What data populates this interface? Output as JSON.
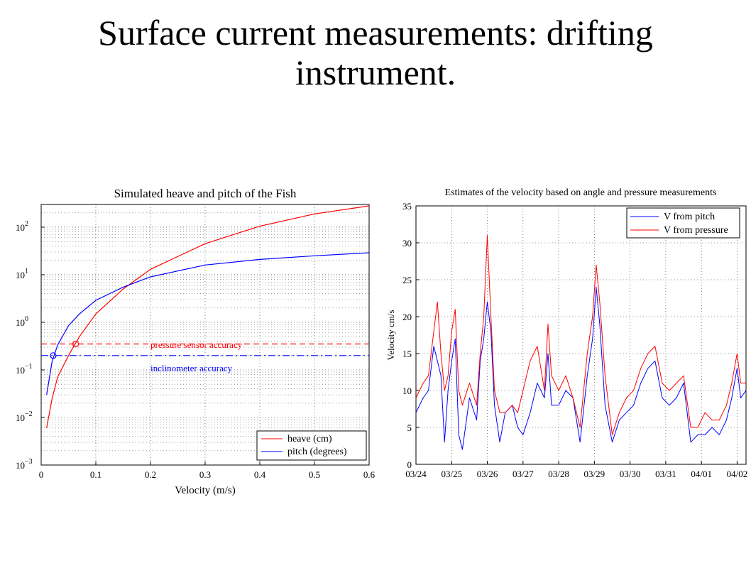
{
  "slide": {
    "title_line1": "Surface current measurements: drifting",
    "title_line2": "instrument."
  },
  "chart_data": [
    {
      "type": "line",
      "title": "Simulated heave and pitch of the Fish",
      "xlabel": "Velocity (m/s)",
      "ylabel": "",
      "y_scale": "log",
      "xlim": [
        0,
        0.6
      ],
      "ylim": [
        0.001,
        300
      ],
      "grid": true,
      "x_ticks": [
        "0",
        "0.1",
        "0.2",
        "0.3",
        "0.4",
        "0.5",
        "0.6"
      ],
      "x_tick_values": [
        0,
        0.1,
        0.2,
        0.3,
        0.4,
        0.5,
        0.6
      ],
      "y_ticks": [
        {
          "base": "10",
          "exp": "2",
          "value": 100
        },
        {
          "base": "10",
          "exp": "1",
          "value": 10
        },
        {
          "base": "10",
          "exp": "0",
          "value": 1
        },
        {
          "base": "10",
          "exp": "−1",
          "value": 0.1
        },
        {
          "base": "10",
          "exp": "−2",
          "value": 0.01
        },
        {
          "base": "10",
          "exp": "−3",
          "value": 0.001
        }
      ],
      "series": [
        {
          "name": "heave (cm)",
          "color": "#ff0000",
          "x": [
            0.01,
            0.02,
            0.03,
            0.05,
            0.07,
            0.1,
            0.15,
            0.2,
            0.3,
            0.4,
            0.5,
            0.6
          ],
          "y": [
            0.006,
            0.025,
            0.07,
            0.2,
            0.5,
            1.5,
            5,
            13,
            45,
            105,
            190,
            280
          ]
        },
        {
          "name": "pitch (degrees)",
          "color": "#0000ff",
          "x": [
            0.01,
            0.02,
            0.03,
            0.05,
            0.07,
            0.1,
            0.15,
            0.2,
            0.3,
            0.4,
            0.5,
            0.6
          ],
          "y": [
            0.03,
            0.15,
            0.33,
            0.85,
            1.5,
            2.9,
            5.5,
            9,
            16,
            21,
            25,
            29
          ]
        }
      ],
      "reference_lines": [
        {
          "label": "pressure sensor accuracy",
          "y": 0.35,
          "color": "#ff0000"
        },
        {
          "label": "inclinometer accuracy",
          "y": 0.2,
          "color": "#0000ff"
        }
      ],
      "markers": [
        {
          "series": "heave (cm)",
          "x": 0.063,
          "y": 0.35,
          "color": "#ff0000"
        },
        {
          "series": "pitch (degrees)",
          "x": 0.022,
          "y": 0.2,
          "color": "#0000ff"
        }
      ],
      "legend": "bottom-right"
    },
    {
      "type": "line",
      "title": "Estimates of the velocity based on angle and pressure measurements",
      "xlabel": "",
      "ylabel": "Velocity cm/s",
      "xlim": [
        0,
        9.25
      ],
      "ylim": [
        0,
        35
      ],
      "grid": true,
      "x_ticks": [
        "03/24",
        "03/25",
        "03/26",
        "03/27",
        "03/28",
        "03/29",
        "03/30",
        "03/31",
        "04/01",
        "04/02"
      ],
      "y_ticks": [
        "0",
        "5",
        "10",
        "15",
        "20",
        "25",
        "30",
        "35"
      ],
      "y_tick_values": [
        0,
        5,
        10,
        15,
        20,
        25,
        30,
        35
      ],
      "series": [
        {
          "name": "V from pitch",
          "color": "#0000ff",
          "x": [
            0,
            0.2,
            0.35,
            0.5,
            0.6,
            0.7,
            0.8,
            0.9,
            1.0,
            1.1,
            1.2,
            1.3,
            1.5,
            1.7,
            1.8,
            1.9,
            2.0,
            2.1,
            2.2,
            2.35,
            2.5,
            2.7,
            2.85,
            3.0,
            3.2,
            3.4,
            3.6,
            3.7,
            3.8,
            4.0,
            4.2,
            4.4,
            4.6,
            4.8,
            4.95,
            5.05,
            5.15,
            5.3,
            5.5,
            5.7,
            5.9,
            6.1,
            6.3,
            6.5,
            6.7,
            6.9,
            7.1,
            7.3,
            7.5,
            7.7,
            7.9,
            8.1,
            8.3,
            8.5,
            8.7,
            8.85,
            9.0,
            9.1,
            9.25
          ],
          "y": [
            7,
            9,
            10,
            16,
            14,
            12,
            3,
            10,
            14,
            17,
            4,
            2,
            9,
            6,
            14,
            17,
            22,
            18,
            8,
            3,
            7,
            8,
            5,
            4,
            7,
            11,
            9,
            15,
            8,
            8,
            10,
            9,
            3,
            12,
            17,
            24,
            19,
            8,
            3,
            6,
            7,
            8,
            11,
            13,
            14,
            9,
            8,
            9,
            11,
            3,
            4,
            4,
            5,
            4,
            6,
            9,
            13,
            9,
            10
          ]
        },
        {
          "name": "V from pressure",
          "color": "#ff0000",
          "x": [
            0,
            0.2,
            0.35,
            0.5,
            0.6,
            0.7,
            0.8,
            0.9,
            1.0,
            1.1,
            1.2,
            1.3,
            1.5,
            1.7,
            1.8,
            1.9,
            2.0,
            2.1,
            2.2,
            2.35,
            2.5,
            2.7,
            2.85,
            3.0,
            3.2,
            3.4,
            3.6,
            3.7,
            3.8,
            4.0,
            4.2,
            4.4,
            4.6,
            4.8,
            4.95,
            5.05,
            5.15,
            5.3,
            5.5,
            5.7,
            5.9,
            6.1,
            6.3,
            6.5,
            6.7,
            6.9,
            7.1,
            7.3,
            7.5,
            7.7,
            7.9,
            8.1,
            8.3,
            8.5,
            8.7,
            8.85,
            9.0,
            9.1,
            9.25
          ],
          "y": [
            9,
            11,
            12,
            18,
            22,
            15,
            10,
            12,
            18,
            21,
            10,
            8,
            11,
            8,
            15,
            20,
            31,
            20,
            10,
            7,
            7,
            8,
            7,
            10,
            14,
            16,
            10,
            19,
            12,
            10,
            12,
            9,
            5,
            15,
            20,
            27,
            22,
            12,
            4,
            7,
            9,
            10,
            13,
            15,
            16,
            11,
            10,
            11,
            12,
            5,
            5,
            7,
            6,
            6,
            8,
            11,
            15,
            11,
            11
          ]
        }
      ],
      "legend": "top-right"
    }
  ]
}
